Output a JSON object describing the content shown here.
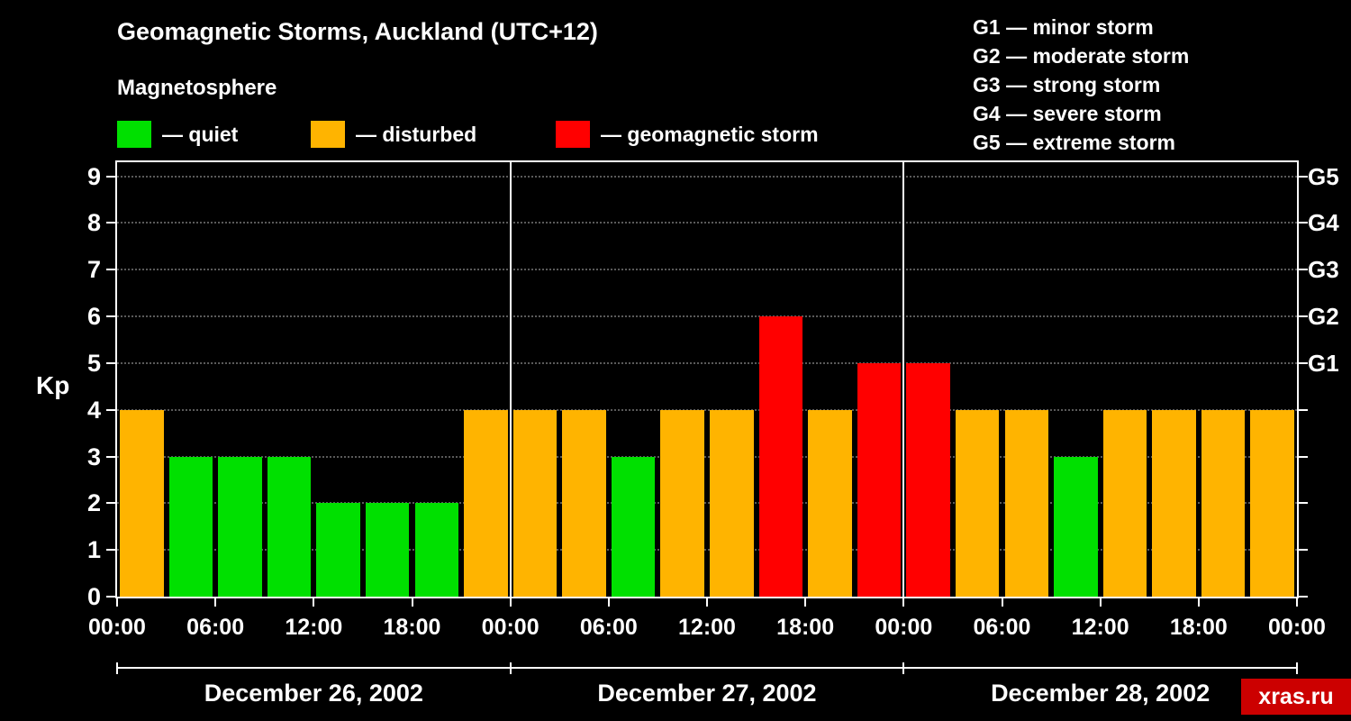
{
  "title": "Geomagnetic Storms, Auckland (UTC+12)",
  "subtitle": "Magnetosphere",
  "kp_axis_label": "Kp",
  "legend": {
    "quiet_label": "— quiet",
    "disturbed_label": "— disturbed",
    "storm_label": "— geomagnetic storm"
  },
  "g_scale_legend": [
    "G1 — minor storm",
    "G2 — moderate storm",
    "G3 — strong storm",
    "G4 — severe storm",
    "G5 — extreme storm"
  ],
  "watermark": "xras.ru",
  "colors": {
    "quiet": "#00e000",
    "disturbed": "#ffb400",
    "storm": "#ff0000",
    "background": "#000000",
    "text": "#ffffff",
    "grid": "#5a5a5a",
    "axis": "#ffffff",
    "watermark_bg": "#cc0000"
  },
  "chart_data": {
    "type": "bar",
    "title": "Geomagnetic Storms, Auckland (UTC+12)",
    "ylabel": "Kp",
    "ylim": [
      0,
      9.3
    ],
    "yticks": [
      0,
      1,
      2,
      3,
      4,
      5,
      6,
      7,
      8,
      9
    ],
    "right_axis": [
      {
        "label": "G1",
        "value": 5
      },
      {
        "label": "G2",
        "value": 6
      },
      {
        "label": "G3",
        "value": 7
      },
      {
        "label": "G4",
        "value": 8
      },
      {
        "label": "G5",
        "value": 9
      }
    ],
    "bar_interval_hours": 3,
    "x_tick_labels": [
      "00:00",
      "06:00",
      "12:00",
      "18:00"
    ],
    "closing_x_tick_label": "00:00",
    "color_rule": {
      "quiet": "kp <= 3",
      "disturbed": "kp == 4",
      "storm": "kp >= 5"
    },
    "days": [
      {
        "label": "December 26, 2002",
        "kp_values": [
          4,
          3,
          3,
          3,
          2,
          2,
          2,
          4
        ]
      },
      {
        "label": "December 27, 2002",
        "kp_values": [
          4,
          4,
          3,
          4,
          4,
          6,
          4,
          5
        ]
      },
      {
        "label": "December 28, 2002",
        "kp_values": [
          5,
          4,
          4,
          3,
          4,
          4,
          4,
          4
        ]
      }
    ],
    "grid": "dotted horizontal lines at integer Kp values",
    "legend_position": "top-left"
  }
}
